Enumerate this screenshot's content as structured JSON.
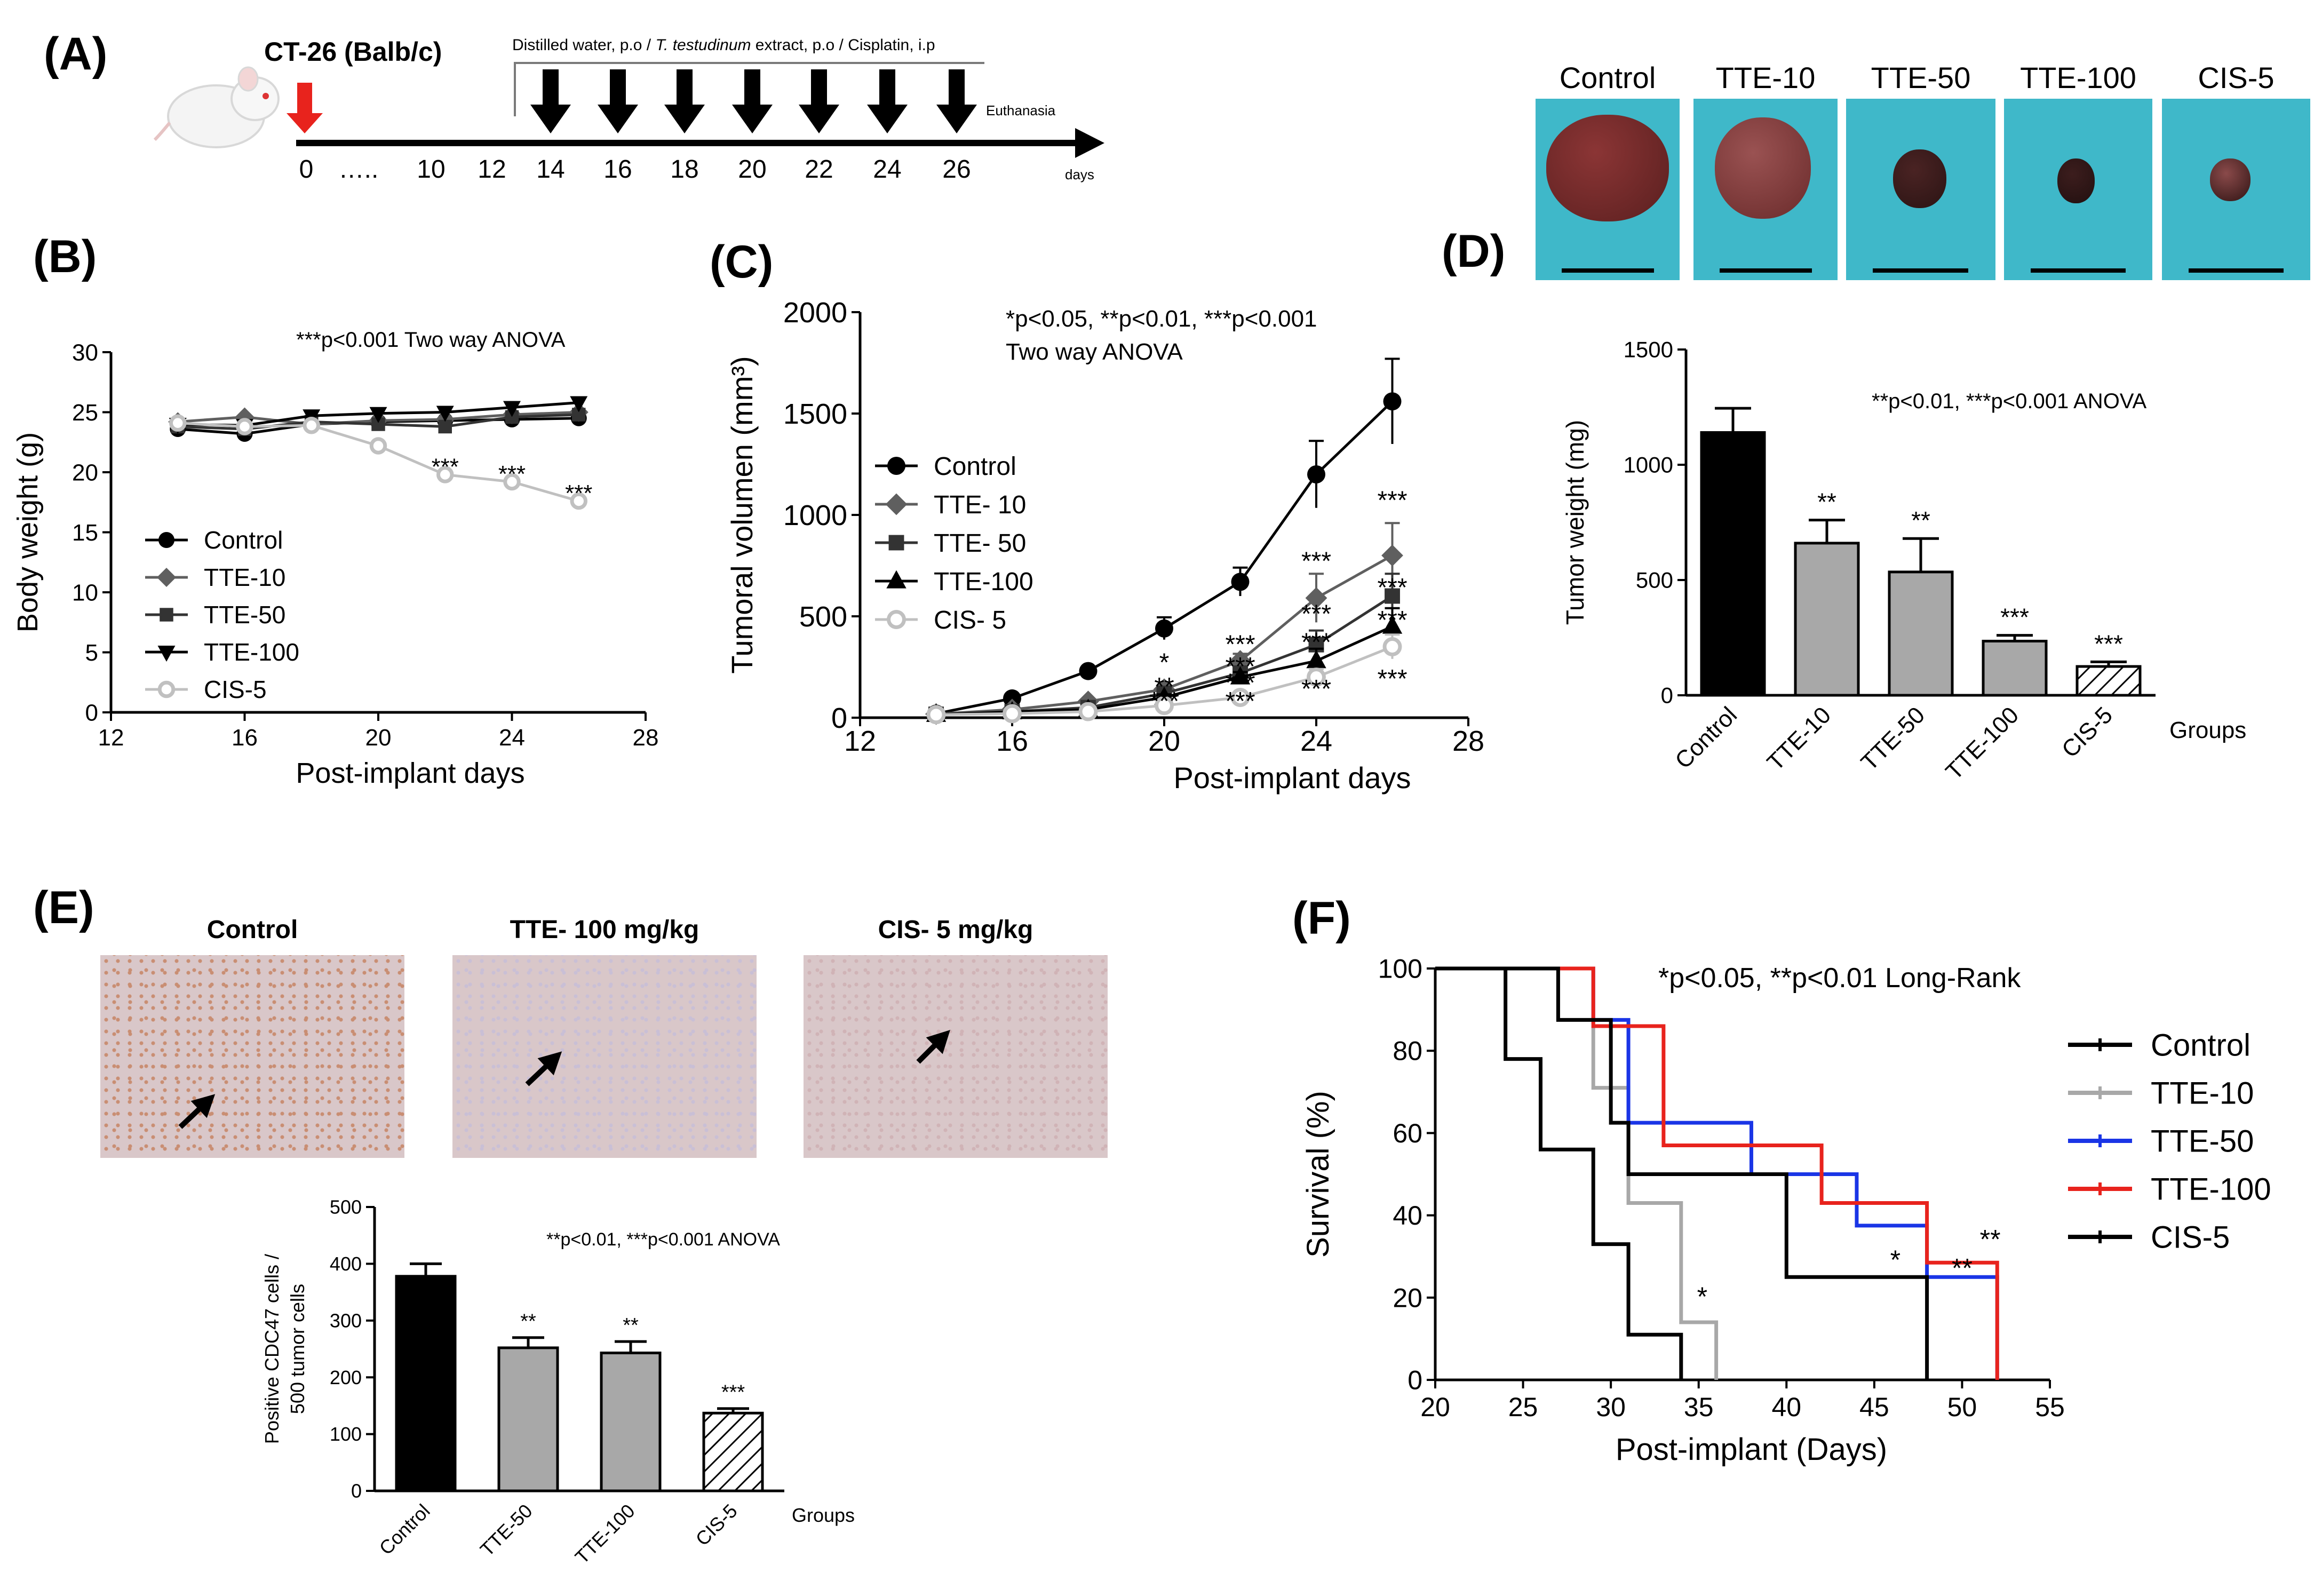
{
  "panels": {
    "a": "(A)",
    "b": "(B)",
    "c": "(C)",
    "d": "(D)",
    "e": "(E)",
    "f": "(F)"
  },
  "colors": {
    "red": "#e8231d",
    "grey": "#a8a8a8",
    "dark_grey": "#5f5f5f",
    "light_grey": "#c0c0c0",
    "blue": "#1a35e6",
    "teal_bg": "#3fb8c9",
    "tissue_bg": "#d9c7c9"
  },
  "timeline": {
    "cell_line": "CT-26 (Balb/c)",
    "treatment_label_1": "Distilled water, p.o / ",
    "treatment_label_italic": "T. testudinum",
    "treatment_label_2": " extract, p.o / Cisplatin, i.p",
    "ticks": [
      "0",
      "…..",
      "10",
      "12",
      "14",
      "16",
      "18",
      "20",
      "22",
      "24",
      "26"
    ],
    "dose_days": [
      "14",
      "16",
      "18",
      "20",
      "22",
      "24",
      "26"
    ],
    "end_label": "Euthanasia",
    "axis_unit": "days"
  },
  "photos": {
    "labels": [
      "Control",
      "TTE-10",
      "TTE-50",
      "TTE-100",
      "CIS-5"
    ]
  },
  "histology": {
    "labels": [
      "Control",
      "TTE- 100 mg/kg",
      "CIS- 5 mg/kg"
    ]
  },
  "chart_data": [
    {
      "id": "B",
      "type": "line",
      "title": "***p<0.001 Two way ANOVA",
      "xlabel": "Post-implant days",
      "ylabel": "Body weight (g)",
      "xlim": [
        12,
        28
      ],
      "ylim": [
        0,
        30
      ],
      "xticks": [
        12,
        16,
        20,
        24,
        28
      ],
      "yticks": [
        0,
        5,
        10,
        15,
        20,
        25,
        30
      ],
      "x": [
        14,
        16,
        18,
        20,
        22,
        24,
        26
      ],
      "series": [
        {
          "name": "Control",
          "marker": "circle",
          "values": [
            23.6,
            23.2,
            24.0,
            24.2,
            24.3,
            24.4,
            24.5
          ]
        },
        {
          "name": "TTE-10",
          "marker": "diamond",
          "values": [
            24.2,
            24.6,
            24.0,
            24.3,
            24.4,
            24.8,
            25.0
          ]
        },
        {
          "name": "TTE-50",
          "marker": "square",
          "values": [
            23.8,
            23.6,
            24.2,
            24.0,
            23.8,
            24.6,
            24.8
          ]
        },
        {
          "name": "TTE-100",
          "marker": "tri-down",
          "values": [
            24.0,
            23.9,
            24.7,
            24.9,
            25.0,
            25.4,
            25.8
          ]
        },
        {
          "name": "CIS-5",
          "marker": "open-circle",
          "values": [
            24.1,
            23.8,
            23.9,
            22.2,
            19.8,
            19.2,
            17.6
          ]
        }
      ],
      "annotations": [
        {
          "x": 22,
          "y": 19.8,
          "text": "***"
        },
        {
          "x": 24,
          "y": 19.2,
          "text": "***"
        },
        {
          "x": 26,
          "y": 17.6,
          "text": "***"
        }
      ]
    },
    {
      "id": "C",
      "type": "line",
      "title": "*p<0.05, **p<0.01, ***p<0.001",
      "subtitle": "Two way ANOVA",
      "xlabel": "Post-implant days",
      "ylabel": "Tumoral volumen (mm³)",
      "xlim": [
        12,
        28
      ],
      "ylim": [
        0,
        2000
      ],
      "xticks": [
        12,
        16,
        20,
        24,
        28
      ],
      "yticks": [
        0,
        500,
        1000,
        1500,
        2000
      ],
      "x": [
        14,
        16,
        18,
        20,
        22,
        24,
        26
      ],
      "series": [
        {
          "name": "Control",
          "marker": "circle",
          "values": [
            20,
            95,
            230,
            440,
            670,
            1200,
            1560
          ],
          "errors": [
            0,
            10,
            20,
            55,
            70,
            165,
            210
          ]
        },
        {
          "name": "TTE- 10",
          "marker": "diamond",
          "values": [
            18,
            40,
            80,
            140,
            280,
            590,
            800
          ],
          "errors": [
            0,
            5,
            10,
            20,
            35,
            120,
            160
          ]
        },
        {
          "name": "TTE- 50",
          "marker": "square",
          "values": [
            17,
            30,
            50,
            120,
            220,
            360,
            600
          ],
          "errors": [
            0,
            4,
            8,
            18,
            30,
            70,
            110
          ]
        },
        {
          "name": "TTE-100",
          "marker": "triangle",
          "values": [
            15,
            28,
            40,
            100,
            200,
            280,
            450
          ],
          "errors": [
            0,
            3,
            6,
            15,
            25,
            60,
            90
          ]
        },
        {
          "name": "CIS- 5",
          "marker": "open-circle",
          "values": [
            15,
            20,
            30,
            60,
            100,
            200,
            350
          ],
          "errors": [
            0,
            3,
            5,
            10,
            15,
            40,
            60
          ]
        }
      ],
      "annotations": [
        {
          "x": 20,
          "y": 230,
          "text": "*"
        },
        {
          "x": 20,
          "y": 110,
          "text": "**"
        },
        {
          "x": 20,
          "y": 40,
          "text": "***"
        },
        {
          "x": 22,
          "y": 320,
          "text": "***"
        },
        {
          "x": 22,
          "y": 210,
          "text": "***"
        },
        {
          "x": 22,
          "y": 130,
          "text": "***"
        },
        {
          "x": 22,
          "y": 40,
          "text": "***"
        },
        {
          "x": 24,
          "y": 730,
          "text": "***"
        },
        {
          "x": 24,
          "y": 470,
          "text": "***"
        },
        {
          "x": 24,
          "y": 330,
          "text": "***"
        },
        {
          "x": 24,
          "y": 100,
          "text": "***"
        },
        {
          "x": 26,
          "y": 1030,
          "text": "***"
        },
        {
          "x": 26,
          "y": 600,
          "text": "***"
        },
        {
          "x": 26,
          "y": 440,
          "text": "***"
        },
        {
          "x": 26,
          "y": 150,
          "text": "***"
        }
      ]
    },
    {
      "id": "D",
      "type": "bar",
      "title": "**p<0.01, ***p<0.001 ANOVA",
      "xlabel": "Groups",
      "ylabel": "Tumor weight (mg)",
      "ylim": [
        0,
        1500
      ],
      "yticks": [
        0,
        500,
        1000,
        1500
      ],
      "categories": [
        "Control",
        "TTE-10",
        "TTE-50",
        "TTE-100",
        "CIS-5"
      ],
      "values": [
        1140,
        660,
        535,
        235,
        125
      ],
      "errors": [
        105,
        100,
        145,
        25,
        20
      ],
      "fills": [
        "black",
        "grey",
        "grey",
        "grey",
        "hatch"
      ],
      "significance": [
        "",
        "**",
        "**",
        "***",
        "***"
      ]
    },
    {
      "id": "E",
      "type": "bar",
      "title": "**p<0.01, ***p<0.001 ANOVA",
      "xlabel": "Groups",
      "ylabel_1": "Positive CDC47 cells /",
      "ylabel_2": "500 tumor cells",
      "ylim": [
        0,
        500
      ],
      "yticks": [
        0,
        100,
        200,
        300,
        400,
        500
      ],
      "categories": [
        "Control",
        "TTE-50",
        "TTE-100",
        "CIS-5"
      ],
      "values": [
        378,
        252,
        243,
        137
      ],
      "errors": [
        22,
        18,
        20,
        8
      ],
      "fills": [
        "black",
        "grey",
        "grey",
        "hatch"
      ],
      "significance": [
        "",
        "**",
        "**",
        "***"
      ]
    },
    {
      "id": "F",
      "type": "line",
      "step": true,
      "title": "*p<0.05, **p<0.01 Long-Rank",
      "xlabel": "Post-implant (Days)",
      "ylabel": "Survival (%)",
      "xlim": [
        20,
        55
      ],
      "ylim": [
        0,
        100
      ],
      "xticks": [
        20,
        25,
        30,
        35,
        40,
        45,
        50,
        55
      ],
      "yticks": [
        0,
        20,
        40,
        60,
        80,
        100
      ],
      "series": [
        {
          "name": "Control",
          "color": "#000000",
          "points": [
            [
              20,
              100
            ],
            [
              24,
              100
            ],
            [
              24,
              78
            ],
            [
              26,
              78
            ],
            [
              26,
              56
            ],
            [
              29,
              56
            ],
            [
              29,
              33
            ],
            [
              31,
              33
            ],
            [
              31,
              11
            ],
            [
              34,
              11
            ],
            [
              34,
              0
            ]
          ]
        },
        {
          "name": "TTE-10",
          "color": "#a8a8a8",
          "points": [
            [
              20,
              100
            ],
            [
              27,
              100
            ],
            [
              27,
              87.5
            ],
            [
              29,
              87.5
            ],
            [
              29,
              71
            ],
            [
              31,
              71
            ],
            [
              31,
              43
            ],
            [
              34,
              43
            ],
            [
              34,
              14
            ],
            [
              36,
              14
            ],
            [
              36,
              0
            ]
          ]
        },
        {
          "name": "TTE-50",
          "color": "#1a35e6",
          "points": [
            [
              20,
              100
            ],
            [
              29,
              100
            ],
            [
              29,
              87.5
            ],
            [
              31,
              87.5
            ],
            [
              31,
              62.5
            ],
            [
              38,
              62.5
            ],
            [
              38,
              50
            ],
            [
              44,
              50
            ],
            [
              44,
              37.5
            ],
            [
              48,
              37.5
            ],
            [
              48,
              25
            ],
            [
              52,
              25
            ],
            [
              52,
              0
            ]
          ]
        },
        {
          "name": "TTE-100",
          "color": "#e8231d",
          "points": [
            [
              20,
              100
            ],
            [
              29,
              100
            ],
            [
              29,
              86
            ],
            [
              33,
              86
            ],
            [
              33,
              57
            ],
            [
              42,
              57
            ],
            [
              42,
              43
            ],
            [
              48,
              43
            ],
            [
              48,
              28.5
            ],
            [
              52,
              28.5
            ],
            [
              52,
              0
            ]
          ]
        },
        {
          "name": "CIS-5",
          "color": "#000000",
          "points": [
            [
              20,
              100
            ],
            [
              27,
              100
            ],
            [
              27,
              87.5
            ],
            [
              30,
              87.5
            ],
            [
              30,
              62.5
            ],
            [
              31,
              62.5
            ],
            [
              31,
              50
            ],
            [
              40,
              50
            ],
            [
              40,
              25
            ],
            [
              48,
              25
            ],
            [
              48,
              0
            ]
          ]
        }
      ],
      "annotations": [
        {
          "x": 35.2,
          "y": 18,
          "text": "*"
        },
        {
          "x": 46.2,
          "y": 27,
          "text": "*"
        },
        {
          "x": 50.0,
          "y": 25,
          "text": "**"
        },
        {
          "x": 51.6,
          "y": 32,
          "text": "**"
        }
      ]
    }
  ]
}
